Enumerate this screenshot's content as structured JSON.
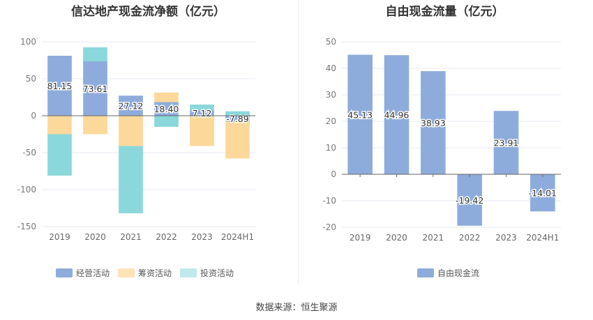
{
  "source": "数据来源：恒生聚源",
  "chart_data": [
    {
      "type": "bar",
      "stacked": true,
      "title": "信达地产现金流净额（亿元）",
      "categories": [
        "2019",
        "2020",
        "2021",
        "2022",
        "2023",
        "2024H1"
      ],
      "ylim": [
        -150,
        100
      ],
      "yticks": [
        "100",
        "50",
        "0",
        "-50",
        "-100",
        "-150"
      ],
      "series": [
        {
          "name": "经营活动",
          "color": "#8eacdb",
          "values": [
            81.15,
            73.61,
            27.12,
            18.4,
            7.12,
            -7.89
          ]
        },
        {
          "name": "筹资活动",
          "color": "#fcd89b",
          "values": [
            -25,
            -25,
            -41,
            13,
            -41,
            -50
          ]
        },
        {
          "name": "投资活动",
          "color": "#8ad8db",
          "values": [
            -56,
            19,
            -91,
            -15,
            8,
            6
          ]
        }
      ],
      "data_labels": [
        "81.15",
        "73.61",
        "27.12",
        "18.40",
        "7.12",
        "-7.89"
      ],
      "legend": "bottom"
    },
    {
      "type": "bar",
      "title": "自由现金流量（亿元）",
      "categories": [
        "2019",
        "2020",
        "2021",
        "2022",
        "2023",
        "2024H1"
      ],
      "ylim": [
        -20,
        50
      ],
      "yticks": [
        "50",
        "40",
        "30",
        "20",
        "10",
        "0",
        "-10",
        "-20"
      ],
      "series": [
        {
          "name": "自由现金流",
          "color": "#8eacdb",
          "values": [
            45.13,
            44.96,
            38.93,
            -19.42,
            23.91,
            -14.01
          ]
        }
      ],
      "data_labels": [
        "45.13",
        "44.96",
        "38.93",
        "-19.42",
        "23.91",
        "-14.01"
      ],
      "legend": "bottom"
    }
  ]
}
